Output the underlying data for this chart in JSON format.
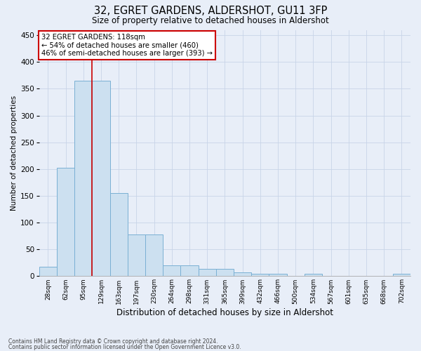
{
  "title": "32, EGRET GARDENS, ALDERSHOT, GU11 3FP",
  "subtitle": "Size of property relative to detached houses in Aldershot",
  "xlabel": "Distribution of detached houses by size in Aldershot",
  "ylabel": "Number of detached properties",
  "footer1": "Contains HM Land Registry data © Crown copyright and database right 2024.",
  "footer2": "Contains public sector information licensed under the Open Government Licence v3.0.",
  "bin_labels": [
    "28sqm",
    "62sqm",
    "95sqm",
    "129sqm",
    "163sqm",
    "197sqm",
    "230sqm",
    "264sqm",
    "298sqm",
    "331sqm",
    "365sqm",
    "399sqm",
    "432sqm",
    "466sqm",
    "500sqm",
    "534sqm",
    "567sqm",
    "601sqm",
    "635sqm",
    "668sqm",
    "702sqm"
  ],
  "bar_values": [
    18,
    202,
    365,
    365,
    155,
    78,
    78,
    20,
    20,
    13,
    13,
    7,
    5,
    5,
    0,
    5,
    0,
    0,
    0,
    0,
    5
  ],
  "bar_color": "#cce0f0",
  "bar_edge_color": "#7ab0d4",
  "grid_color": "#c8d4e8",
  "background_color": "#e8eef8",
  "annotation_line1": "32 EGRET GARDENS: 118sqm",
  "annotation_line2": "← 54% of detached houses are smaller (460)",
  "annotation_line3": "46% of semi-detached houses are larger (393) →",
  "annotation_box_color": "#ffffff",
  "annotation_border_color": "#cc0000",
  "red_line_x": 2.5,
  "ylim": [
    0,
    460
  ],
  "yticks": [
    0,
    50,
    100,
    150,
    200,
    250,
    300,
    350,
    400,
    450
  ]
}
